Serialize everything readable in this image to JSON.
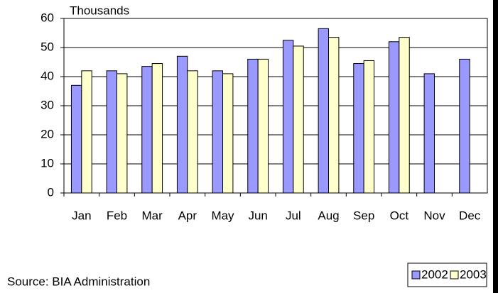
{
  "chart_data": {
    "type": "bar",
    "y_axis_label": "Thousands",
    "categories": [
      "Jan",
      "Feb",
      "Mar",
      "Apr",
      "May",
      "Jun",
      "Jul",
      "Aug",
      "Sep",
      "Oct",
      "Nov",
      "Dec"
    ],
    "series": [
      {
        "name": "2002",
        "color": "#9999ff",
        "values": [
          37,
          42,
          43.5,
          47,
          42,
          46,
          52.5,
          56.5,
          44.5,
          52,
          41,
          46
        ]
      },
      {
        "name": "2003",
        "color": "#ffffcc",
        "values": [
          42,
          41,
          44.5,
          42,
          41,
          46,
          50.5,
          53.5,
          45.5,
          53.5,
          null,
          null
        ]
      }
    ],
    "ylim": [
      0,
      60
    ],
    "yticks": [
      0,
      10,
      20,
      30,
      40,
      50,
      60
    ],
    "grid": true,
    "legend": "bottom-right",
    "source": "Source: BIA Administration"
  }
}
